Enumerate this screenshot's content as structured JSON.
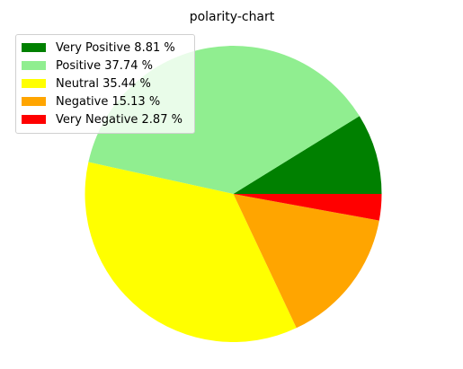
{
  "chart_data": {
    "type": "pie",
    "title": "polarity-chart",
    "start_angle_deg": 0,
    "direction": "counterclockwise",
    "legend_position": "top-left",
    "slices": [
      {
        "label": "Very Positive 8.81 %",
        "value": 8.81,
        "color": "#008000"
      },
      {
        "label": "Positive 37.74 %",
        "value": 37.74,
        "color": "#90ee90"
      },
      {
        "label": "Neutral 35.44 %",
        "value": 35.44,
        "color": "#ffff00"
      },
      {
        "label": "Negative 15.13 %",
        "value": 15.13,
        "color": "#ffa500"
      },
      {
        "label": "Very Negative 2.87 %",
        "value": 2.87,
        "color": "#ff0000"
      }
    ]
  }
}
